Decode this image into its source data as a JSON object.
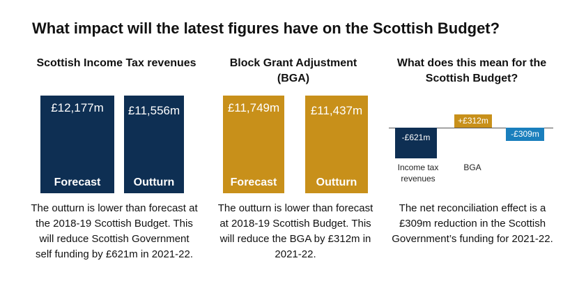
{
  "title": "What impact will the latest figures have on the Scottish Budget?",
  "panels": {
    "income_tax": {
      "title": "Scottish Income Tax revenues",
      "description": "The outturn is lower than forecast at the 2018-19 Scottish Budget. This will reduce Scottish Government self funding by £621m in 2021-22."
    },
    "bga": {
      "title": "Block Grant Adjustment (BGA)",
      "description": "The outturn is lower than forecast at 2018-19 Scottish Budget. This will reduce the BGA by £312m in 2021-22."
    },
    "impact": {
      "title": "What does this mean for the Scottish Budget?",
      "description": "The net reconciliation effect is a £309m reduction in the Scottish Government’s funding for 2021-22."
    }
  },
  "colors": {
    "navy": "#0e2f53",
    "gold": "#c8901a",
    "blue": "#1a7fbd"
  },
  "chart_data": [
    {
      "type": "bar",
      "title": "Scottish Income Tax revenues",
      "categories": [
        "Forecast",
        "Outturn"
      ],
      "values": [
        12177,
        11556
      ],
      "value_labels": [
        "£12,177m",
        "£11,556m"
      ],
      "color": "#0e2f53"
    },
    {
      "type": "bar",
      "title": "Block Grant Adjustment (BGA)",
      "categories": [
        "Forecast",
        "Outturn"
      ],
      "values": [
        11749,
        11437
      ],
      "value_labels": [
        "£11,749m",
        "£11,437m"
      ],
      "color": "#c8901a"
    },
    {
      "type": "bar",
      "title": "What does this mean for the Scottish Budget?",
      "categories": [
        "Income tax revenues",
        "BGA",
        ""
      ],
      "values": [
        -621,
        312,
        -309
      ],
      "value_labels": [
        "-£621m",
        "+£312m",
        "-£309m"
      ],
      "colors": [
        "#0e2f53",
        "#c8901a",
        "#1a7fbd"
      ]
    }
  ]
}
